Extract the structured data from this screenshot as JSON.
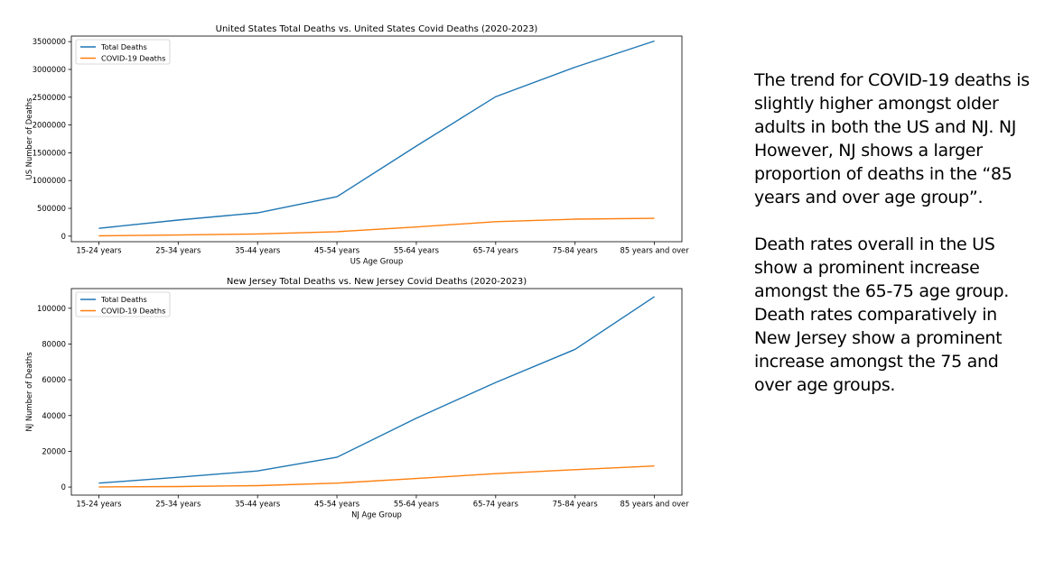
{
  "chart_data": [
    {
      "type": "line",
      "title": "United States Total Deaths vs. United States Covid Deaths (2020-2023)",
      "xlabel": "US Age Group",
      "ylabel": "US Number of Deaths",
      "categories": [
        "15-24 years",
        "25-34 years",
        "35-44 years",
        "45-54 years",
        "55-64 years",
        "65-74 years",
        "75-84 years",
        "85 years and over"
      ],
      "ylim": [
        -100000,
        3600000
      ],
      "yticks": [
        0,
        500000,
        1000000,
        1500000,
        2000000,
        2500000,
        3000000,
        3500000
      ],
      "legend": "upper-left",
      "grid": false,
      "series": [
        {
          "name": "Total Deaths",
          "color": "#1f77b4",
          "values": [
            140000,
            290000,
            420000,
            710000,
            1620000,
            2510000,
            3040000,
            3510000
          ]
        },
        {
          "name": "COVID-19 Deaths",
          "color": "#ff7f0e",
          "values": [
            5000,
            20000,
            40000,
            80000,
            165000,
            260000,
            305000,
            320000
          ]
        }
      ]
    },
    {
      "type": "line",
      "title": "New Jersey Total Deaths vs. New Jersey Covid Deaths (2020-2023)",
      "xlabel": "NJ Age Group",
      "ylabel": "NJ Number of Deaths",
      "categories": [
        "15-24 years",
        "25-34 years",
        "35-44 years",
        "45-54 years",
        "55-64 years",
        "65-74 years",
        "75-84 years",
        "85 years and over"
      ],
      "ylim": [
        -4500,
        111000
      ],
      "yticks": [
        0,
        20000,
        40000,
        60000,
        80000,
        100000
      ],
      "legend": "upper-left",
      "grid": false,
      "series": [
        {
          "name": "Total Deaths",
          "color": "#1f77b4",
          "values": [
            2200,
            5500,
            9000,
            16700,
            38500,
            58500,
            77000,
            106500
          ]
        },
        {
          "name": "COVID-19 Deaths",
          "color": "#ff7f0e",
          "values": [
            100,
            300,
            800,
            2200,
            4800,
            7500,
            9700,
            11800
          ]
        }
      ]
    }
  ],
  "notes": {
    "paragraph1": "The trend for COVID-19 deaths is slightly higher amongst older adults in both the US and NJ. NJ However, NJ shows a larger proportion of deaths in the “85 years and over age group”.",
    "paragraph2": "Death rates overall in the US show a prominent increase amongst the  65-75 age group. Death rates comparatively in New Jersey show a prominent increase amongst the 75 and over age groups."
  }
}
